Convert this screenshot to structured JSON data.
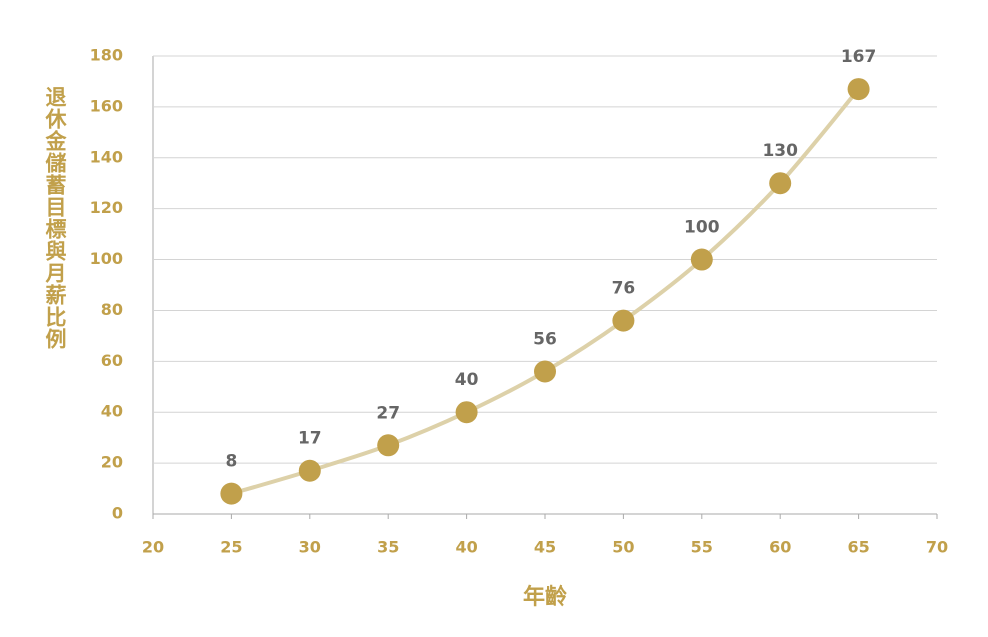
{
  "chart_data": {
    "type": "line",
    "xlabel": "年齡",
    "ylabel": "退休金儲蓄目標與月薪比例",
    "x": [
      25,
      30,
      35,
      40,
      45,
      50,
      55,
      60,
      65
    ],
    "values": [
      8,
      17,
      27,
      40,
      56,
      76,
      100,
      130,
      167
    ],
    "color": "#c1a04b",
    "line_color": "#ddd1a9",
    "xlim": [
      20,
      70
    ],
    "xticks": [
      20,
      25,
      30,
      35,
      40,
      45,
      50,
      55,
      60,
      65,
      70
    ],
    "ylim": [
      0,
      180
    ],
    "yticks": [
      0,
      20,
      40,
      60,
      80,
      100,
      120,
      140,
      160,
      180
    ],
    "grid": true,
    "data_labels": true
  }
}
